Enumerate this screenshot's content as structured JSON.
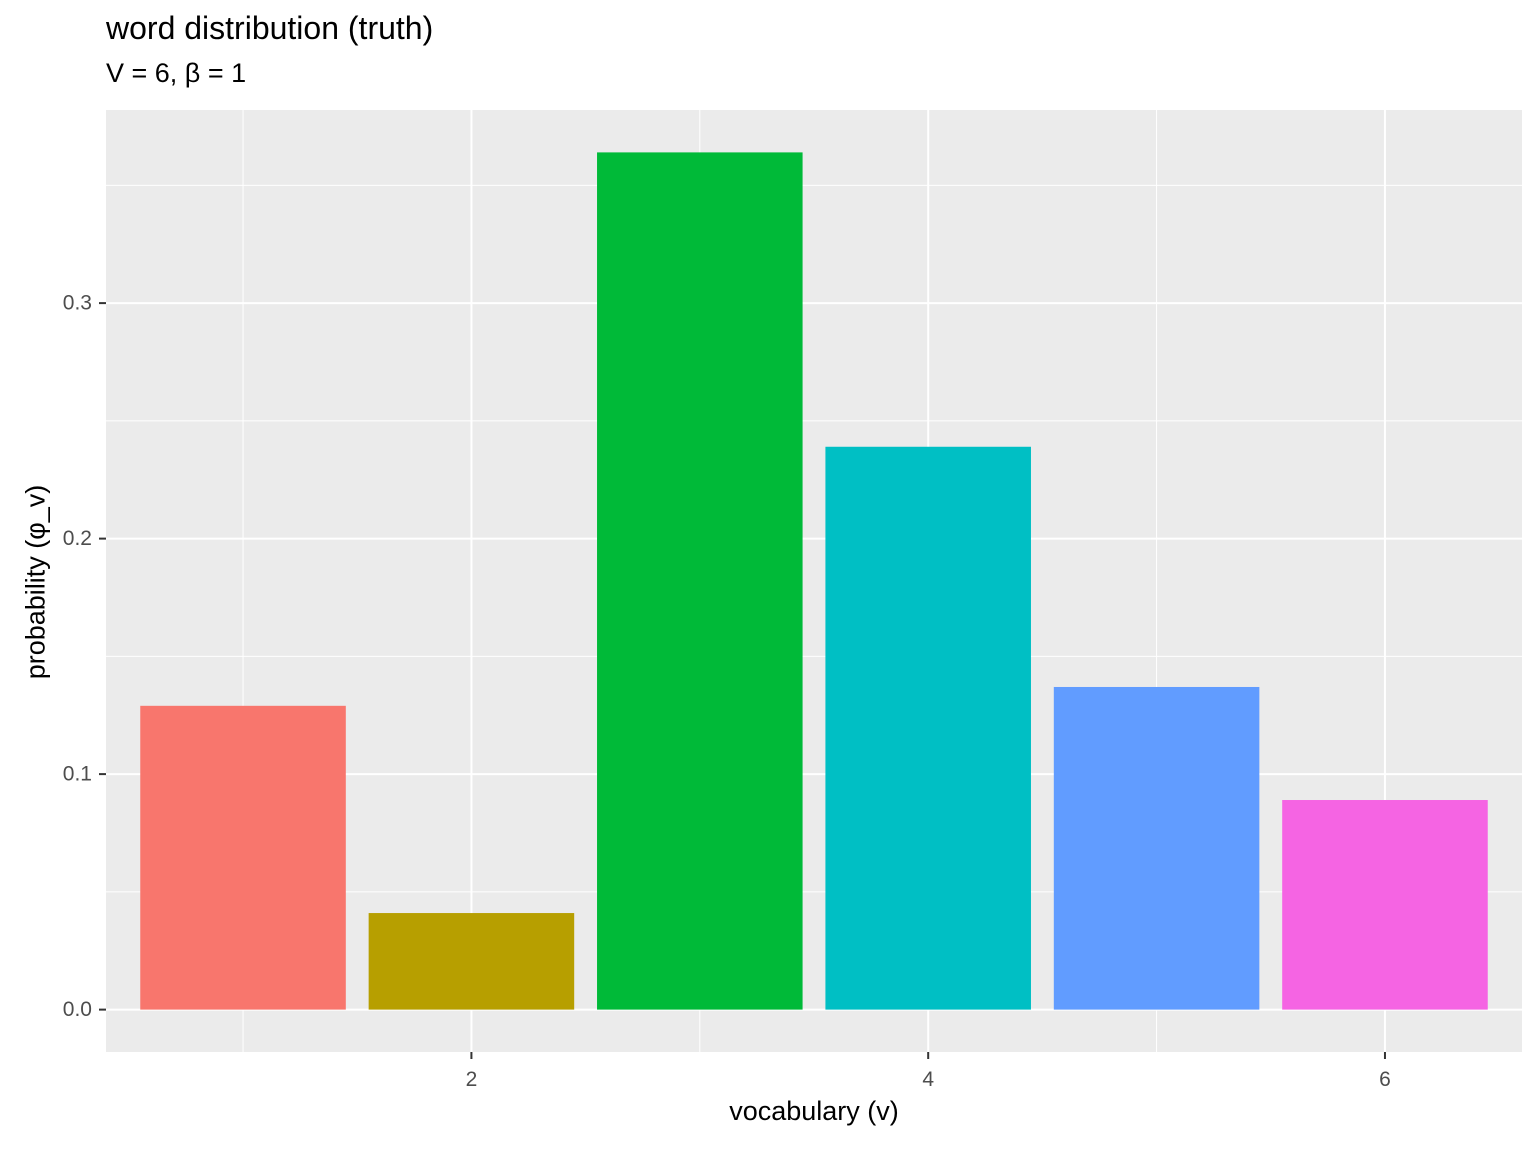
{
  "chart_data": {
    "type": "bar",
    "title": "word distribution (truth)",
    "subtitle": "V = 6, β = 1",
    "xlabel": "vocabulary (v)",
    "ylabel": "probability (φ_v)",
    "x": [
      1,
      2,
      3,
      4,
      5,
      6
    ],
    "values": [
      0.129,
      0.041,
      0.364,
      0.239,
      0.137,
      0.089
    ],
    "colors": [
      "#F8766D",
      "#B79F00",
      "#00BA38",
      "#00BFC4",
      "#619CFF",
      "#F564E3"
    ],
    "xlim": [
      0.4,
      6.6
    ],
    "ylim": [
      -0.018,
      0.382
    ],
    "x_ticks": [
      2,
      4,
      6
    ],
    "x_tick_labels": [
      "2",
      "4",
      "6"
    ],
    "y_ticks": [
      0.0,
      0.1,
      0.2,
      0.3
    ],
    "y_tick_labels": [
      "0.0",
      "0.1",
      "0.2",
      "0.3"
    ],
    "grid": true,
    "legend": "none",
    "panel_background": "#EBEBEB",
    "grid_color": "#FFFFFF"
  }
}
